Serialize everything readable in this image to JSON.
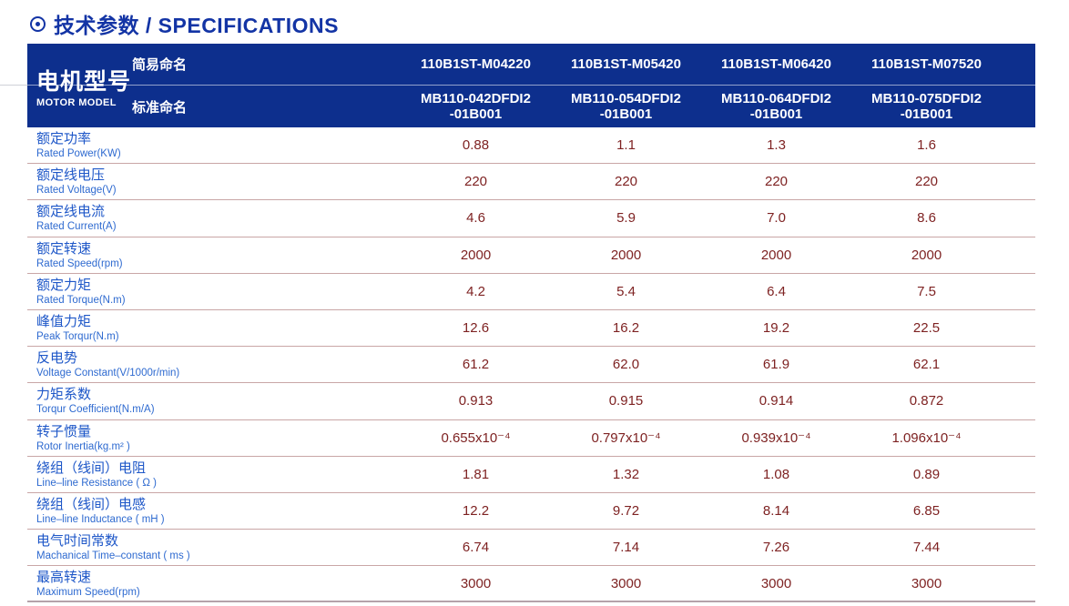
{
  "title": {
    "zh": "技术参数",
    "en": "/ SPECIFICATIONS"
  },
  "header": {
    "motor_model_zh": "电机型号",
    "motor_model_en": "MOTOR MODEL",
    "simple_name_label": "简易命名",
    "standard_name_label": "标准命名"
  },
  "columns": [
    {
      "simple": "110B1ST-M04220",
      "standard_line1": "MB110-042DFDI2",
      "standard_line2": "-01B001"
    },
    {
      "simple": "110B1ST-M05420",
      "standard_line1": "MB110-054DFDI2",
      "standard_line2": "-01B001"
    },
    {
      "simple": "110B1ST-M06420",
      "standard_line1": "MB110-064DFDI2",
      "standard_line2": "-01B001"
    },
    {
      "simple": "110B1ST-M07520",
      "standard_line1": "MB110-075DFDI2",
      "standard_line2": "-01B001"
    }
  ],
  "rows": [
    {
      "zh": "额定功率",
      "en": "Rated Power(KW)",
      "values": [
        "0.88",
        "1.1",
        "1.3",
        "1.6"
      ]
    },
    {
      "zh": "额定线电压",
      "en": "Rated Voltage(V)",
      "values": [
        "220",
        "220",
        "220",
        "220"
      ]
    },
    {
      "zh": "额定线电流",
      "en": "Rated Current(A)",
      "values": [
        "4.6",
        "5.9",
        "7.0",
        "8.6"
      ]
    },
    {
      "zh": "额定转速",
      "en": "Rated Speed(rpm)",
      "values": [
        "2000",
        "2000",
        "2000",
        "2000"
      ]
    },
    {
      "zh": "额定力矩",
      "en": "Rated Torque(N.m)",
      "values": [
        "4.2",
        "5.4",
        "6.4",
        "7.5"
      ]
    },
    {
      "zh": "峰值力矩",
      "en": "Peak Torqur(N.m)",
      "values": [
        "12.6",
        "16.2",
        "19.2",
        "22.5"
      ]
    },
    {
      "zh": "反电势",
      "en": "Voltage Constant(V/1000r/min)",
      "values": [
        "61.2",
        "62.0",
        "61.9",
        "62.1"
      ]
    },
    {
      "zh": "力矩系数",
      "en": "Torqur Coefficient(N.m/A)",
      "values": [
        "0.913",
        "0.915",
        "0.914",
        "0.872"
      ]
    },
    {
      "zh": "转子惯量",
      "en": "Rotor Inertia(kg.m² )",
      "values": [
        "0.655x10⁻⁴",
        "0.797x10⁻⁴",
        "0.939x10⁻⁴",
        "1.096x10⁻⁴"
      ]
    },
    {
      "zh": "绕组（线间）电阻",
      "en": "Line–line Resistance ( Ω )",
      "values": [
        "1.81",
        "1.32",
        "1.08",
        "0.89"
      ]
    },
    {
      "zh": "绕组（线间）电感",
      "en": "Line–line Inductance ( mH )",
      "values": [
        "12.2",
        "9.72",
        "8.14",
        "6.85"
      ]
    },
    {
      "zh": "电气时间常数",
      "en": "Machanical Time–constant ( ms )",
      "values": [
        "6.74",
        "7.14",
        "7.26",
        "7.44"
      ]
    },
    {
      "zh": "最高转速",
      "en": "Maximum Speed(rpm)",
      "values": [
        "3000",
        "3000",
        "3000",
        "3000"
      ]
    }
  ],
  "colors": {
    "header_navy": "#0d2f8d",
    "title_blue": "#1334a5",
    "label_blue": "#1e57c8",
    "value_maroon": "#7e2222",
    "divider_rose": "#c9a6a6"
  }
}
